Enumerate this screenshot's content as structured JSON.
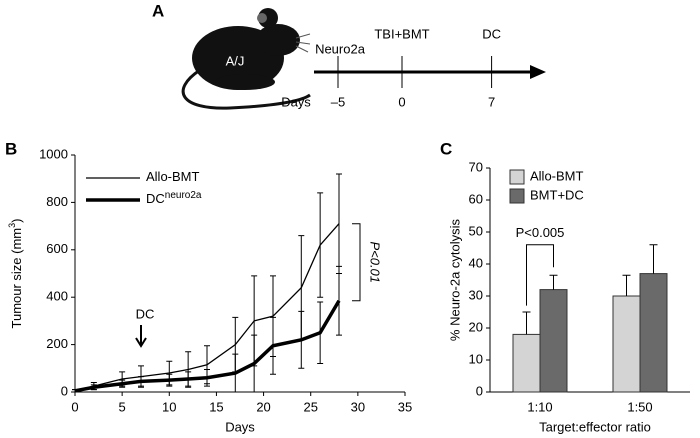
{
  "panel_a": {
    "label": "A",
    "mouse_label": "A/J",
    "axis_label": "Days",
    "events": [
      {
        "text": "Neuro2a",
        "day": {
          "value": -5,
          "label": "–5"
        }
      },
      {
        "text": "TBI+BMT",
        "day": 0
      },
      {
        "text": "DC",
        "day": 7
      }
    ]
  },
  "chart_data": [
    {
      "type": "line",
      "label": "B",
      "xlabel": "Days",
      "ylabel": [
        "Tumour size (mm",
        "3",
        ")"
      ],
      "x": [
        0,
        2,
        5,
        7,
        10,
        12,
        14,
        17,
        19,
        21,
        24,
        26,
        28
      ],
      "series": [
        {
          "name": "Allo-BMT",
          "color": "#000000",
          "width": 1.3,
          "values": [
            5,
            25,
            55,
            65,
            80,
            95,
            115,
            200,
            300,
            320,
            440,
            620,
            710
          ],
          "errors": [
            5,
            15,
            30,
            45,
            50,
            75,
            80,
            115,
            190,
            170,
            220,
            220,
            210
          ]
        },
        {
          "name": "DC",
          "name_sup": "neuro2a",
          "color": "#000000",
          "width": 3.5,
          "values": [
            5,
            20,
            35,
            45,
            50,
            55,
            60,
            80,
            120,
            195,
            220,
            250,
            385
          ],
          "errors": [
            5,
            10,
            15,
            20,
            25,
            30,
            35,
            80,
            120,
            120,
            120,
            130,
            145
          ]
        }
      ],
      "xlim": [
        0,
        35
      ],
      "xticks": [
        0,
        5,
        10,
        15,
        20,
        25,
        30,
        35
      ],
      "ylim": [
        0,
        1000
      ],
      "yticks": [
        0,
        200,
        400,
        600,
        800,
        1000
      ],
      "annotations": [
        "DC",
        "P<0.01"
      ]
    },
    {
      "type": "bar",
      "label": "C",
      "xlabel": "Target:effector ratio",
      "ylabel": "% Neuro-2a cytolysis",
      "categories": [
        "1:10",
        "1:50"
      ],
      "series": [
        {
          "name": "Allo-BMT",
          "color": "#d4d4d4",
          "values": [
            18,
            30
          ],
          "errors": [
            7,
            6.5
          ]
        },
        {
          "name": "BMT+DC",
          "color": "#6a6a6a",
          "values": [
            32,
            37
          ],
          "errors": [
            4.5,
            9
          ]
        }
      ],
      "ylim": [
        0,
        70
      ],
      "yticks": [
        0,
        10,
        20,
        30,
        40,
        50,
        60,
        70
      ],
      "annotations": [
        "P<0.005"
      ]
    }
  ]
}
